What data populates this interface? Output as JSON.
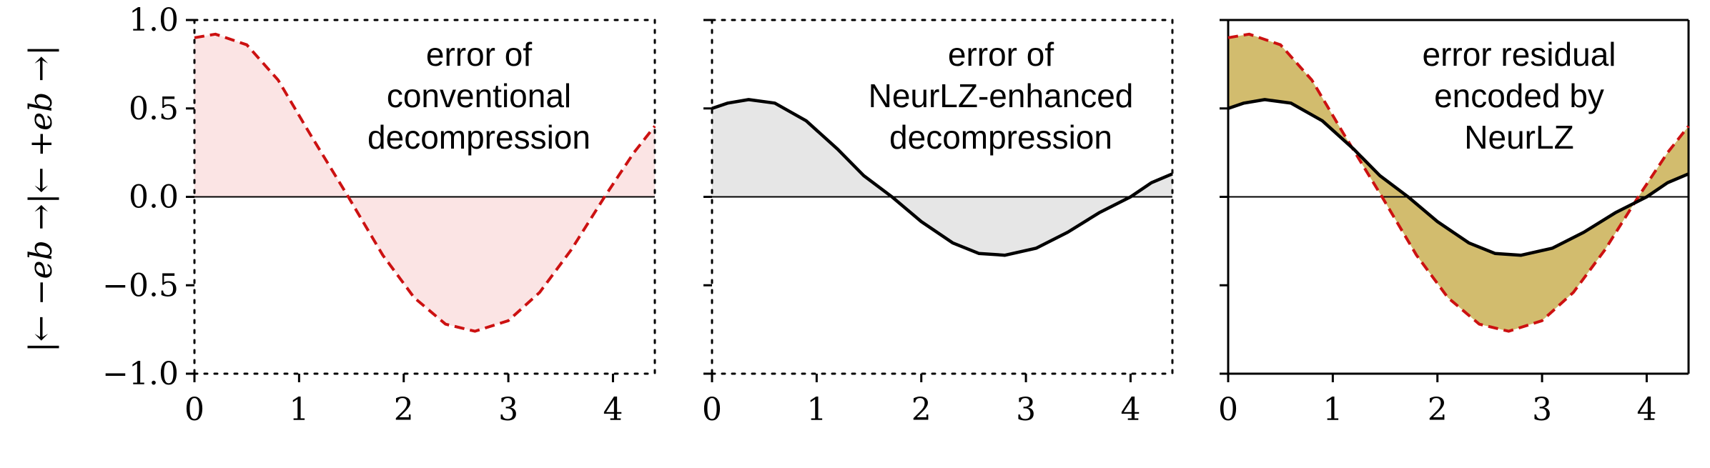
{
  "ylabel": "|← −eb →|← +eb →|",
  "colors": {
    "conventional_line": "#cc1111",
    "conventional_fill": "#fbe4e4",
    "enhanced_line": "#000000",
    "enhanced_fill": "#e6e6e6",
    "residual_fill": "#d2bc6e"
  },
  "chart_data": [
    {
      "type": "area",
      "panel": "left",
      "annotation": [
        "error of",
        "conventional",
        "decompression"
      ],
      "xlim": [
        0,
        4.4
      ],
      "ylim": [
        -1.0,
        1.0
      ],
      "xticks": [
        0,
        1,
        2,
        3,
        4
      ],
      "yticks": [
        1.0,
        0.5,
        0.0,
        -0.5,
        -1.0
      ],
      "ytick_labels": [
        "1.0",
        "0.5",
        "0.0",
        "−0.5",
        "−1.0"
      ],
      "frame": "dotted",
      "series": [
        {
          "style": "dashed",
          "x": [
            0,
            0.2,
            0.5,
            0.8,
            1.1,
            1.47,
            1.8,
            2.1,
            2.4,
            2.68,
            3.0,
            3.3,
            3.6,
            3.92,
            4.2,
            4.4
          ],
          "y": [
            0.9,
            0.92,
            0.86,
            0.66,
            0.36,
            0.0,
            -0.33,
            -0.57,
            -0.72,
            -0.76,
            -0.7,
            -0.54,
            -0.3,
            0.0,
            0.25,
            0.4
          ]
        }
      ]
    },
    {
      "type": "area",
      "panel": "middle",
      "annotation": [
        "error of",
        "NeurLZ-enhanced",
        "decompression"
      ],
      "xlim": [
        0,
        4.4
      ],
      "ylim": [
        -1.0,
        1.0
      ],
      "xticks": [
        0,
        1,
        2,
        3,
        4
      ],
      "frame": "dotted",
      "series": [
        {
          "style": "solid",
          "x": [
            0,
            0.15,
            0.35,
            0.6,
            0.9,
            1.2,
            1.45,
            1.72,
            2.0,
            2.3,
            2.55,
            2.8,
            3.1,
            3.4,
            3.7,
            4.0,
            4.2,
            4.4
          ],
          "y": [
            0.5,
            0.53,
            0.55,
            0.53,
            0.43,
            0.27,
            0.12,
            0.0,
            -0.14,
            -0.26,
            -0.32,
            -0.33,
            -0.29,
            -0.2,
            -0.09,
            0.0,
            0.08,
            0.13
          ]
        }
      ]
    },
    {
      "type": "area",
      "panel": "right",
      "annotation": [
        "error residual",
        "encoded by",
        "NeurLZ"
      ],
      "xlim": [
        0,
        4.4
      ],
      "ylim": [
        -1.0,
        1.0
      ],
      "xticks": [
        0,
        1,
        2,
        3,
        4
      ],
      "frame": "solid",
      "series": [
        {
          "style": "dashed",
          "x": [
            0,
            0.2,
            0.5,
            0.8,
            1.1,
            1.47,
            1.8,
            2.1,
            2.4,
            2.68,
            3.0,
            3.3,
            3.6,
            3.92,
            4.2,
            4.4
          ],
          "y": [
            0.9,
            0.92,
            0.86,
            0.66,
            0.36,
            0.0,
            -0.33,
            -0.57,
            -0.72,
            -0.76,
            -0.7,
            -0.54,
            -0.3,
            0.0,
            0.25,
            0.4
          ]
        },
        {
          "style": "solid",
          "x": [
            0,
            0.15,
            0.35,
            0.6,
            0.9,
            1.2,
            1.45,
            1.72,
            2.0,
            2.3,
            2.55,
            2.8,
            3.1,
            3.4,
            3.7,
            4.0,
            4.2,
            4.4
          ],
          "y": [
            0.5,
            0.53,
            0.55,
            0.53,
            0.43,
            0.27,
            0.12,
            0.0,
            -0.14,
            -0.26,
            -0.32,
            -0.33,
            -0.29,
            -0.2,
            -0.09,
            0.0,
            0.08,
            0.13
          ]
        }
      ]
    }
  ]
}
